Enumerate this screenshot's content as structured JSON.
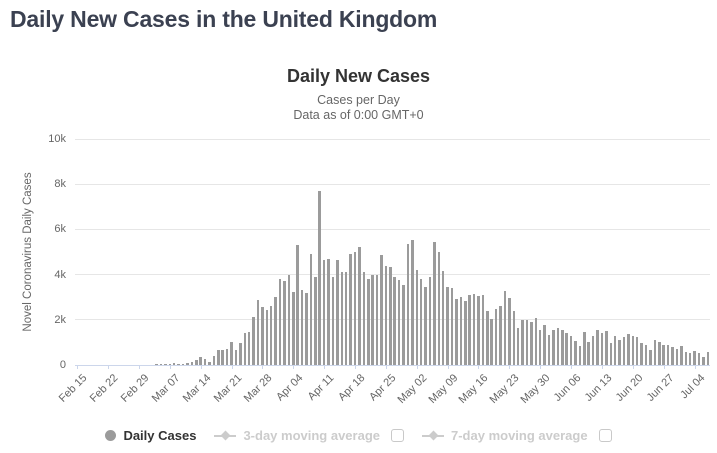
{
  "page": {
    "title": "Daily New Cases in the United Kingdom"
  },
  "colors": {
    "bar": "#9b9b9b",
    "grid": "#e6e6e6",
    "axis_line": "#ccd6eb",
    "title_text": "#333333",
    "subtitle_text": "#666666",
    "page_title_text": "#3b4151",
    "legend_inactive": "#cccccc"
  },
  "legend": {
    "items": [
      {
        "label": "Daily Cases",
        "marker": "circle",
        "color": "#9b9b9b",
        "active": true,
        "has_checkbox": false,
        "checked": false
      },
      {
        "label": "3-day moving average",
        "marker": "diamond-line",
        "color": "#cccccc",
        "active": false,
        "has_checkbox": true,
        "checked": false
      },
      {
        "label": "7-day moving average",
        "marker": "diamond-line",
        "color": "#cccccc",
        "active": false,
        "has_checkbox": true,
        "checked": false
      }
    ]
  },
  "chart_data": {
    "type": "bar",
    "title": "Daily New Cases",
    "subtitle1": "Cases per Day",
    "subtitle2": "Data as of 0:00 GMT+0",
    "ylabel": "Novel Coronavirus Daily Cases",
    "ylim": [
      0,
      10000
    ],
    "yticks": [
      "0",
      "2k",
      "4k",
      "6k",
      "8k",
      "10k"
    ],
    "grid": true,
    "legend_position": "bottom",
    "x_start_label": "Feb 15",
    "x_tick_interval_days": 7,
    "x_tick_labels": [
      "Feb 15",
      "Feb 22",
      "Feb 29",
      "Mar 07",
      "Mar 14",
      "Mar 21",
      "Mar 28",
      "Apr 04",
      "Apr 11",
      "Apr 18",
      "Apr 25",
      "May 02",
      "May 09",
      "May 16",
      "May 23",
      "May 30",
      "Jun 06",
      "Jun 13",
      "Jun 20",
      "Jun 27",
      "Jul 04"
    ],
    "values": [
      0,
      0,
      0,
      0,
      0,
      0,
      0,
      0,
      4,
      0,
      0,
      2,
      1,
      4,
      3,
      12,
      4,
      12,
      34,
      29,
      48,
      45,
      67,
      46,
      50,
      83,
      134,
      208,
      342,
      251,
      152,
      407,
      676,
      643,
      714,
      1035,
      665,
      967,
      1427,
      1452,
      2129,
      2885,
      2546,
      2433,
      2619,
      3009,
      3800,
      3700,
      4000,
      3250,
      5300,
      3300,
      3200,
      4900,
      3900,
      7720,
      4650,
      4700,
      3900,
      4650,
      4100,
      4100,
      4900,
      5000,
      5200,
      4100,
      3800,
      4000,
      4000,
      4850,
      4400,
      4330,
      3890,
      3770,
      3520,
      5360,
      5540,
      4210,
      3810,
      3440,
      3890,
      5460,
      4990,
      4150,
      3440,
      3420,
      2930,
      3030,
      2850,
      3100,
      3150,
      3050,
      3100,
      2410,
      2040,
      2470,
      2600,
      3280,
      2960,
      2410,
      1630,
      2000,
      2010,
      1890,
      2100,
      1530,
      1790,
      1330,
      1530,
      1650,
      1560,
      1400,
      1300,
      1050,
      860,
      1450,
      1000,
      1270,
      1540,
      1430,
      1510,
      970,
      1280,
      1120,
      1220,
      1350,
      1300,
      1220,
      960,
      870,
      650,
      1120,
      1010,
      890,
      900,
      815,
      690,
      830,
      580,
      545,
      625,
      520,
      360,
      580
    ]
  }
}
